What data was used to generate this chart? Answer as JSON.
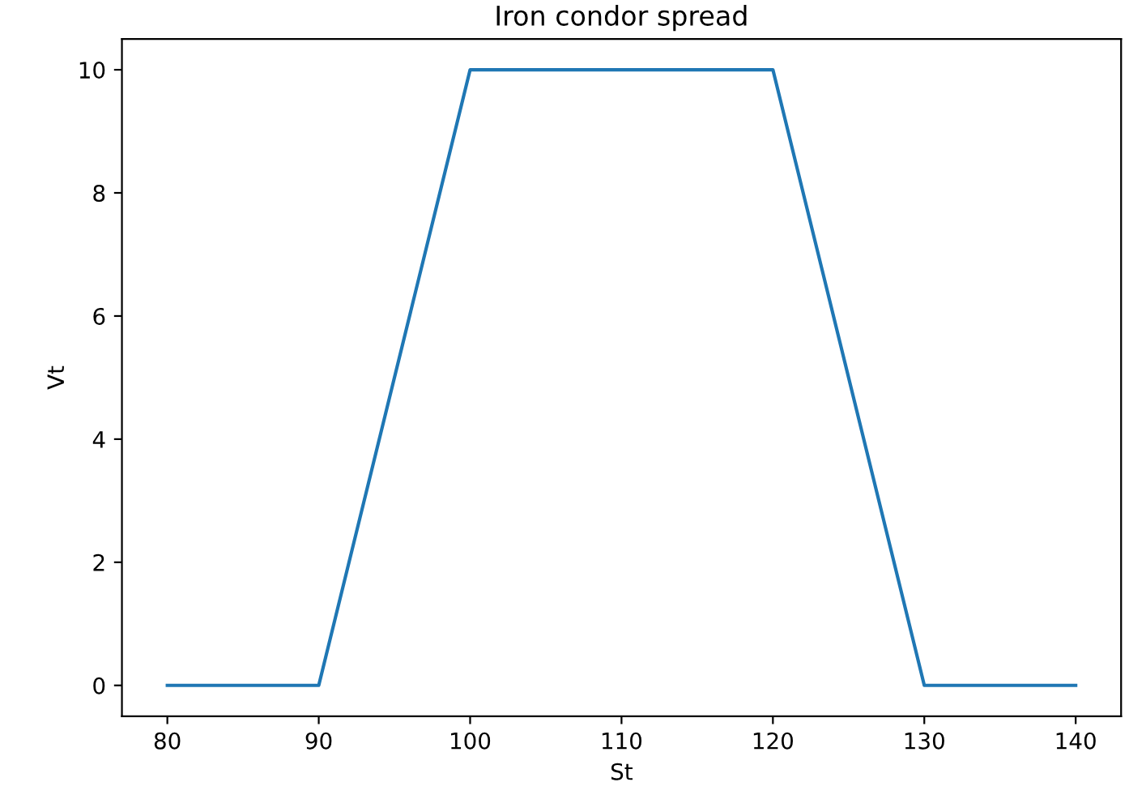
{
  "chart_data": {
    "type": "line",
    "title": "Iron condor spread",
    "xlabel": "St",
    "ylabel": "Vt",
    "x": [
      80,
      90,
      100,
      120,
      130,
      140
    ],
    "series": [
      {
        "color": "#1f77b4",
        "values": [
          0,
          0,
          10,
          10,
          0,
          0
        ]
      }
    ],
    "xlim": [
      77,
      143
    ],
    "ylim": [
      -0.5,
      10.5
    ],
    "xticks": [
      80,
      90,
      100,
      110,
      120,
      130,
      140
    ],
    "yticks": [
      0,
      2,
      4,
      6,
      8,
      10
    ],
    "grid": false,
    "legend": false
  }
}
